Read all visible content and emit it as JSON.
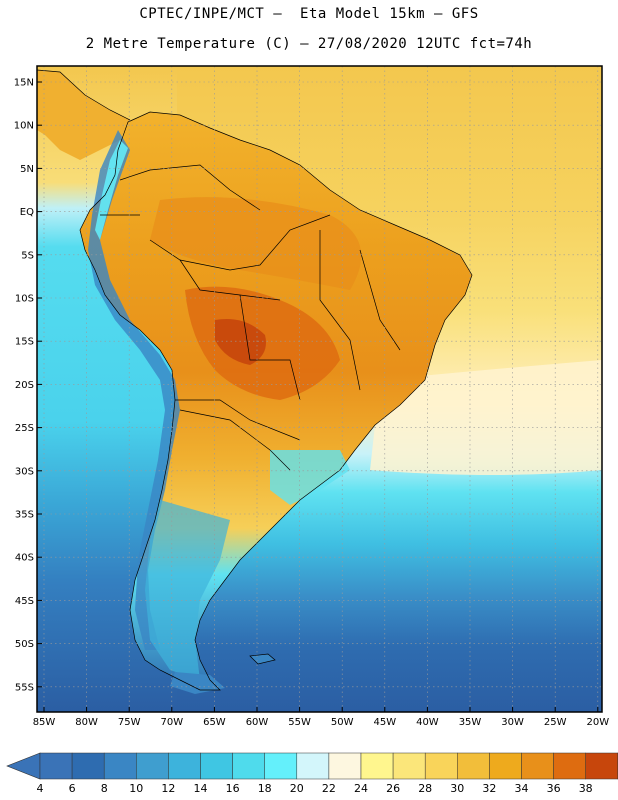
{
  "title_line1": "CPTEC/INPE/MCT –  Eta Model 15km – GFS",
  "title_line2": "2 Metre Temperature (C) – 27/08/2020 12UTC fct=74h",
  "lat_labels": [
    "15N",
    "10N",
    "5N",
    "EQ",
    "5S",
    "10S",
    "15S",
    "20S",
    "25S",
    "30S",
    "35S",
    "40S",
    "45S",
    "50S",
    "55S"
  ],
  "lon_labels": [
    "85W",
    "80W",
    "75W",
    "70W",
    "65W",
    "60W",
    "55W",
    "50W",
    "45W",
    "40W",
    "35W",
    "30W",
    "25W",
    "20W"
  ],
  "colorbar": {
    "labels": [
      "4",
      "6",
      "8",
      "10",
      "12",
      "14",
      "16",
      "18",
      "20",
      "22",
      "24",
      "26",
      "28",
      "30",
      "32",
      "34",
      "36",
      "38"
    ],
    "colors": [
      "#3a73b7",
      "#2e6cb0",
      "#3a86c4",
      "#3f9ecf",
      "#3db3dc",
      "#3fc6e3",
      "#4fdbec",
      "#64f0fb",
      "#d3f6fb",
      "#fdf7e0",
      "#fff68e",
      "#fbe67a",
      "#f9d45a",
      "#f2be3a",
      "#eeaa1d",
      "#e8901a",
      "#de6c10",
      "#c7460c",
      "#b3350a"
    ],
    "under_color": "#3a73b7",
    "over_color": "#b3350a"
  },
  "colors": {
    "ocean_south": "#2e62a6",
    "ocean_mid": "#3aa0d8",
    "ocean_cool": "#53d6ec",
    "ocean_warm_north": "#f6cf58",
    "ocean_pale": "#fff4d4",
    "land_hot": "#e8901a",
    "land_very_hot": "#c7460c",
    "andes_cold": "#2e6cb0",
    "coast_line": "#000000",
    "grid_line": "#9a9a9a"
  }
}
